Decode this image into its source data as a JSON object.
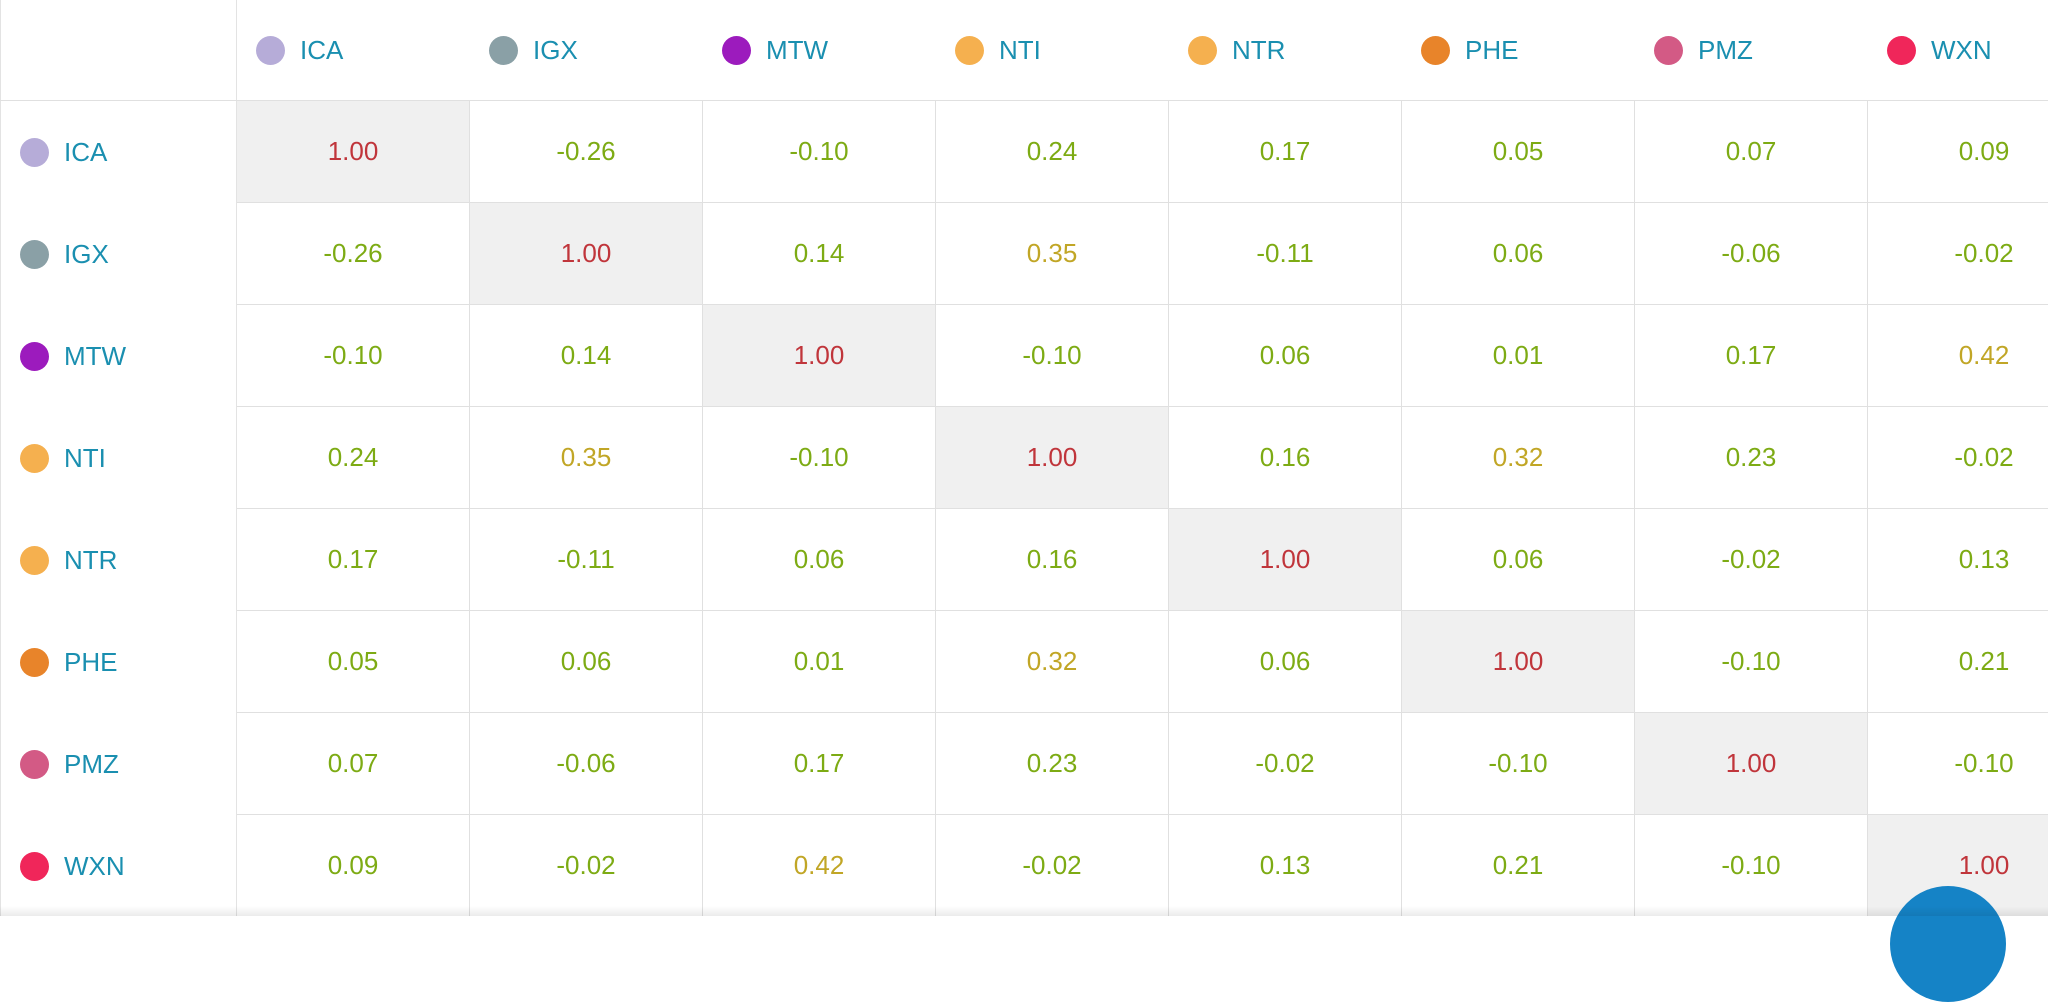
{
  "chart_data": {
    "type": "heatmap",
    "labels": [
      "ICA",
      "IGX",
      "MTW",
      "NTI",
      "NTR",
      "PHE",
      "PMZ",
      "WXN"
    ],
    "label_colors": [
      "#b6acd8",
      "#8aa0a6",
      "#9c1bbd",
      "#f5b04f",
      "#f5b04f",
      "#e8842a",
      "#d35a85",
      "#f0265a"
    ],
    "values": [
      [
        "1.00",
        "-0.26",
        "-0.10",
        "0.24",
        "0.17",
        "0.05",
        "0.07",
        "0.09"
      ],
      [
        "-0.26",
        "1.00",
        "0.14",
        "0.35",
        "-0.11",
        "0.06",
        "-0.06",
        "-0.02"
      ],
      [
        "-0.10",
        "0.14",
        "1.00",
        "-0.10",
        "0.06",
        "0.01",
        "0.17",
        "0.42"
      ],
      [
        "0.24",
        "0.35",
        "-0.10",
        "1.00",
        "0.16",
        "0.32",
        "0.23",
        "-0.02"
      ],
      [
        "0.17",
        "-0.11",
        "0.06",
        "0.16",
        "1.00",
        "0.06",
        "-0.02",
        "0.13"
      ],
      [
        "0.05",
        "0.06",
        "0.01",
        "0.32",
        "0.06",
        "1.00",
        "-0.10",
        "0.21"
      ],
      [
        "0.07",
        "-0.06",
        "0.17",
        "0.23",
        "-0.02",
        "-0.10",
        "1.00",
        "-0.10"
      ],
      [
        "0.09",
        "-0.02",
        "0.42",
        "-0.02",
        "0.13",
        "0.21",
        "-0.10",
        "1.00"
      ]
    ],
    "value_colors": {
      "diagonal": "#c0353b",
      "weak": "#7dab14",
      "moderate": "#c1a626"
    },
    "diagonal_background": "#f0f0f0"
  },
  "fab_color": "#1583c6"
}
